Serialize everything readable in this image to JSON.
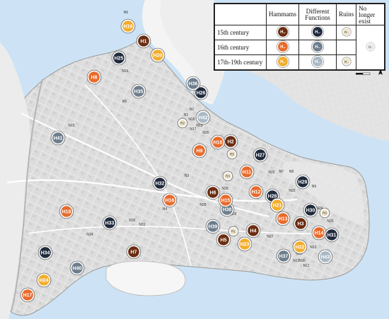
{
  "colors": {
    "sea": "#cde3f5",
    "land_outer": "#f5f5f5",
    "peninsula": "#e0e0e0",
    "road": "#ffffff",
    "wall": "#b8b8b8",
    "hammam_15": "#6b2d12",
    "hammam_16": "#e86a2a",
    "hammam_17_19": "#f3ad2b",
    "func_15": "#1f2a3d",
    "func_16": "#6d7d8c",
    "func_17_19": "#a8b8c4",
    "ruin": "#ede4c8",
    "nolonger": "#e8e8e8"
  },
  "legend": {
    "col_hammams": "Hammams",
    "col_functions": "Different Functions",
    "col_ruins": "Ruins",
    "col_nolonger": "No longer exist",
    "row_15": "15th century",
    "row_16": "16th century",
    "row_17_19": "17th-19th century",
    "marker_h": "H..",
    "marker_r": "R..",
    "marker_n": "N..",
    "scale_label": "1km"
  },
  "markers": [
    {
      "id": "H1",
      "type": "hammam",
      "period": "15"
    },
    {
      "id": "H2",
      "type": "hammam",
      "period": "15"
    },
    {
      "id": "H3",
      "type": "hammam",
      "period": "15"
    },
    {
      "id": "H4",
      "type": "hammam",
      "period": "15"
    },
    {
      "id": "H5",
      "type": "hammam",
      "period": "15"
    },
    {
      "id": "H6",
      "type": "hammam",
      "period": "15"
    },
    {
      "id": "H7",
      "type": "hammam",
      "period": "15"
    },
    {
      "id": "H8",
      "type": "hammam",
      "period": "16"
    },
    {
      "id": "H9",
      "type": "hammam",
      "period": "16"
    },
    {
      "id": "H10",
      "type": "hammam",
      "period": "16"
    },
    {
      "id": "H11",
      "type": "hammam",
      "period": "16"
    },
    {
      "id": "H12",
      "type": "hammam",
      "period": "16"
    },
    {
      "id": "H13",
      "type": "hammam",
      "period": "16"
    },
    {
      "id": "H14",
      "type": "hammam",
      "period": "16"
    },
    {
      "id": "H15",
      "type": "hammam",
      "period": "16"
    },
    {
      "id": "H16",
      "type": "hammam",
      "period": "16"
    },
    {
      "id": "H17",
      "type": "hammam",
      "period": "16"
    },
    {
      "id": "H18",
      "type": "hammam",
      "period": "16"
    },
    {
      "id": "H19",
      "type": "hammam",
      "period": "17"
    },
    {
      "id": "H20",
      "type": "hammam",
      "period": "17"
    },
    {
      "id": "H21",
      "type": "hammam",
      "period": "17"
    },
    {
      "id": "H22",
      "type": "hammam",
      "period": "17"
    },
    {
      "id": "H23",
      "type": "hammam",
      "period": "17"
    },
    {
      "id": "H24",
      "type": "hammam",
      "period": "17"
    },
    {
      "id": "H25",
      "type": "func",
      "period": "15"
    },
    {
      "id": "H26",
      "type": "func",
      "period": "15"
    },
    {
      "id": "H27",
      "type": "func",
      "period": "15"
    },
    {
      "id": "H28",
      "type": "func",
      "period": "15"
    },
    {
      "id": "H29",
      "type": "func",
      "period": "15"
    },
    {
      "id": "H30",
      "type": "func",
      "period": "15"
    },
    {
      "id": "H31",
      "type": "func",
      "period": "15"
    },
    {
      "id": "H32",
      "type": "func",
      "period": "15"
    },
    {
      "id": "H33",
      "type": "func",
      "period": "15"
    },
    {
      "id": "H34",
      "type": "func",
      "period": "15"
    },
    {
      "id": "H35",
      "type": "func",
      "period": "16"
    },
    {
      "id": "H36",
      "type": "func",
      "period": "16"
    },
    {
      "id": "H37",
      "type": "func",
      "period": "16"
    },
    {
      "id": "H38",
      "type": "func",
      "period": "16"
    },
    {
      "id": "H39",
      "type": "func",
      "period": "16"
    },
    {
      "id": "H40",
      "type": "func",
      "period": "16"
    },
    {
      "id": "H41",
      "type": "func",
      "period": "16"
    },
    {
      "id": "H42",
      "type": "func",
      "period": "17"
    },
    {
      "id": "H43",
      "type": "func",
      "period": "17"
    },
    {
      "id": "R1",
      "type": "ruin"
    },
    {
      "id": "R2",
      "type": "ruin"
    },
    {
      "id": "R3",
      "type": "ruin"
    },
    {
      "id": "R5",
      "type": "ruin"
    },
    {
      "id": "R6",
      "type": "ruin"
    },
    {
      "id": "N1",
      "type": "nolonger"
    },
    {
      "id": "N2",
      "type": "nolonger"
    },
    {
      "id": "N3",
      "type": "nolonger"
    },
    {
      "id": "N4",
      "type": "nolonger"
    },
    {
      "id": "N5",
      "type": "nolonger"
    },
    {
      "id": "N6",
      "type": "nolonger"
    },
    {
      "id": "N7",
      "type": "nolonger"
    },
    {
      "id": "N8",
      "type": "nolonger"
    },
    {
      "id": "N9",
      "type": "nolonger"
    },
    {
      "id": "N10",
      "type": "nolonger"
    },
    {
      "id": "N11",
      "type": "nolonger"
    },
    {
      "id": "N12",
      "type": "nolonger"
    },
    {
      "id": "N13",
      "type": "nolonger"
    },
    {
      "id": "N14",
      "type": "nolonger"
    },
    {
      "id": "N15",
      "type": "nolonger"
    },
    {
      "id": "N16",
      "type": "nolonger"
    },
    {
      "id": "N17",
      "type": "nolonger"
    },
    {
      "id": "N18",
      "type": "nolonger"
    },
    {
      "id": "N19",
      "type": "nolonger"
    },
    {
      "id": "N20",
      "type": "nolonger"
    },
    {
      "id": "N22",
      "type": "nolonger"
    },
    {
      "id": "N23",
      "type": "nolonger"
    },
    {
      "id": "N24",
      "type": "nolonger"
    },
    {
      "id": "N25",
      "type": "nolonger"
    },
    {
      "id": "N26",
      "type": "nolonger"
    },
    {
      "id": "N27",
      "type": "nolonger"
    },
    {
      "id": "N28",
      "type": "nolonger"
    },
    {
      "id": "N29",
      "type": "nolonger"
    },
    {
      "id": "N30",
      "type": "nolonger"
    },
    {
      "id": "N31",
      "type": "nolonger"
    },
    {
      "id": "N32",
      "type": "nolonger"
    }
  ]
}
